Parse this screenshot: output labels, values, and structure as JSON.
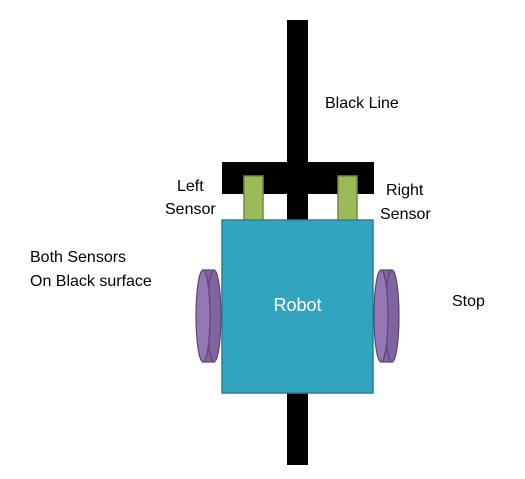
{
  "labels": {
    "black_line": "Black Line",
    "left_sensor_line1": "Left",
    "left_sensor_line2": "Sensor",
    "right_sensor_line1": "Right",
    "right_sensor_line2": "Sensor",
    "condition_line1": "Both Sensors",
    "condition_line2": "On Black surface",
    "robot": "Robot",
    "action": "Stop"
  },
  "colors": {
    "line": "#000000",
    "robot_fill": "#31a5c0",
    "robot_stroke": "#2a7f95",
    "sensor_fill": "#9bbb59",
    "sensor_stroke": "#71893f",
    "wheel_fill": "#8064a2",
    "wheel_stroke": "#5c4776"
  }
}
